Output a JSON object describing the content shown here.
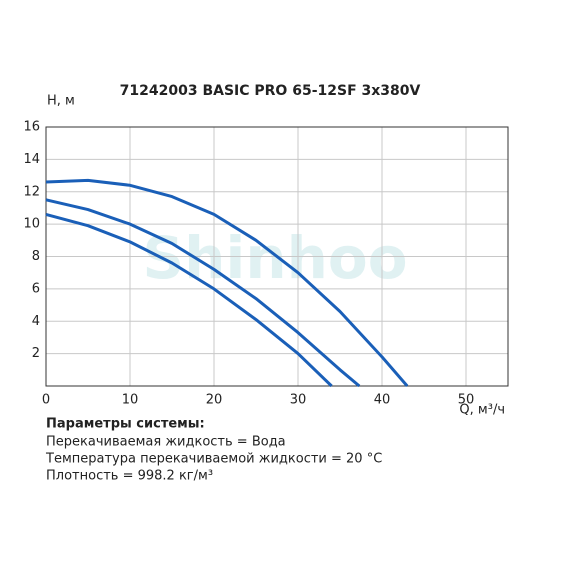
{
  "chart_data": {
    "type": "line",
    "title": "71242003 BASIC PRO 65-12SF 3x380V",
    "y_label": "H, м",
    "x_label": "Q, м³/ч",
    "watermark": "Shinhoo",
    "xlim": [
      0,
      55
    ],
    "xticks": [
      0,
      10,
      20,
      30,
      40,
      50
    ],
    "ylim": [
      0,
      16
    ],
    "yticks": [
      2,
      4,
      6,
      8,
      10,
      12,
      14,
      16
    ],
    "grid": true,
    "series": [
      {
        "color": "#1a5fb8",
        "x": [
          0,
          5,
          10,
          15,
          20,
          25,
          30,
          35,
          40,
          43
        ],
        "values": [
          12.6,
          12.7,
          12.4,
          11.7,
          10.6,
          9.0,
          7.0,
          4.6,
          1.8,
          0
        ]
      },
      {
        "color": "#1a5fb8",
        "x": [
          0,
          5,
          10,
          15,
          20,
          25,
          30,
          35,
          37.3
        ],
        "values": [
          11.5,
          10.9,
          10.0,
          8.8,
          7.2,
          5.4,
          3.3,
          1.0,
          0
        ]
      },
      {
        "color": "#1a5fb8",
        "x": [
          0,
          5,
          10,
          15,
          20,
          25,
          30,
          34
        ],
        "values": [
          10.6,
          9.9,
          8.9,
          7.6,
          6.0,
          4.1,
          2.0,
          0
        ]
      }
    ]
  },
  "notes": {
    "heading": "Параметры системы:",
    "lines": [
      "Перекачиваемая жидкость = Вода",
      "Температура перекачиваемой жидкости = 20 °C",
      "Плотность = 998.2 кг/м³"
    ]
  }
}
